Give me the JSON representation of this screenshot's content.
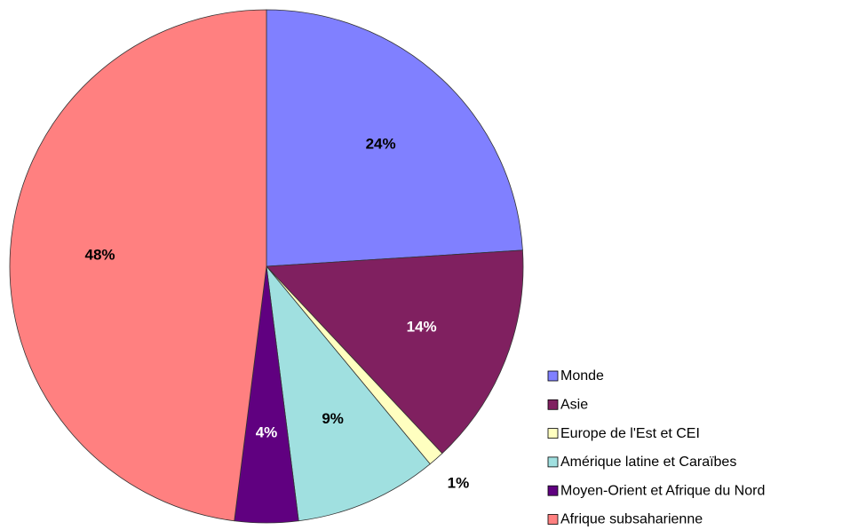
{
  "chart_data": {
    "type": "pie",
    "categories": [
      "Monde",
      "Asie",
      "Europe de l'Est et CEI",
      "Amérique latine et Caraïbes",
      "Moyen-Orient et Afrique du Nord",
      "Afrique subsaharienne"
    ],
    "values": [
      24,
      14,
      1,
      9,
      4,
      48
    ],
    "value_labels": [
      "24%",
      "14%",
      "1%",
      "9%",
      "4%",
      "48%"
    ],
    "colors": [
      "#8080ff",
      "#802060",
      "#ffffc0",
      "#a0e0e0",
      "#600080",
      "#ff8080"
    ],
    "legend": "right"
  }
}
